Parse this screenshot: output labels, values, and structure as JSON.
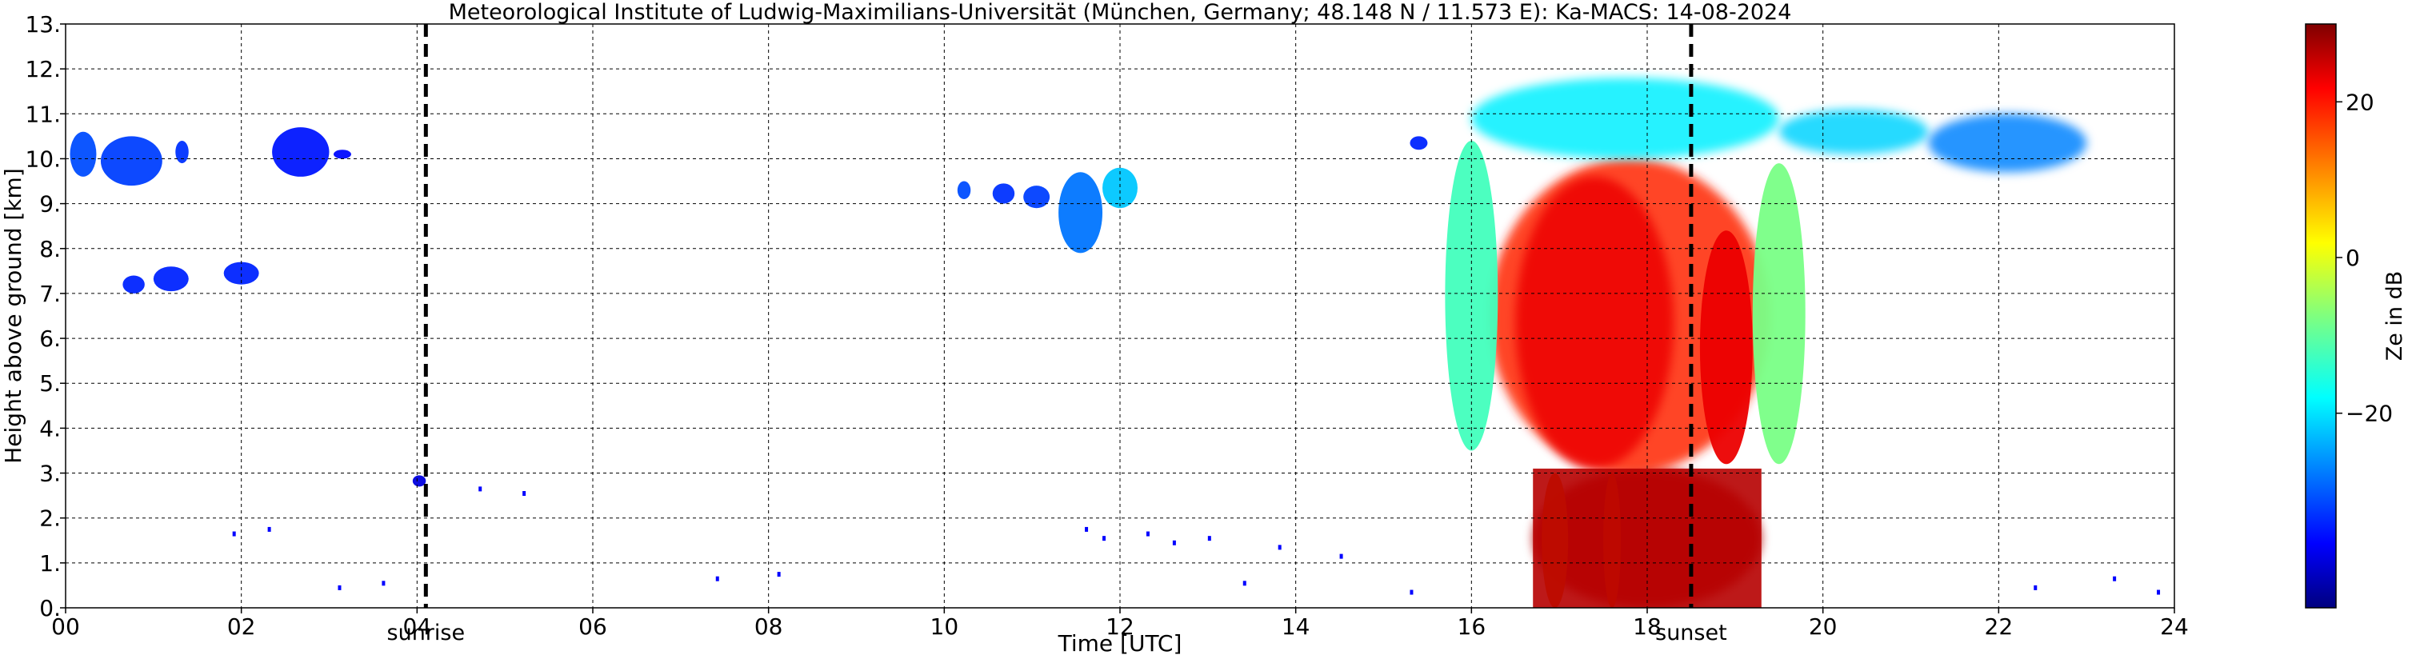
{
  "chart_data": {
    "type": "heatmap",
    "title": "Meteorological Institute of Ludwig-Maximilians-Universität (München, Germany; 48.148 N / 11.573 E):    Ka-MACS: 14-08-2024",
    "xlabel": "Time [UTC]",
    "ylabel": "Height above ground [km]",
    "xlim": [
      0,
      24
    ],
    "ylim": [
      0,
      13
    ],
    "x_ticks": [
      "00",
      "02",
      "04",
      "06",
      "08",
      "10",
      "12",
      "14",
      "16",
      "18",
      "20",
      "22",
      "24"
    ],
    "y_ticks": [
      "0.",
      "1.",
      "2.",
      "3.",
      "4.",
      "5.",
      "6.",
      "7.",
      "8.",
      "9.",
      "10.",
      "11.",
      "12.",
      "13."
    ],
    "grid": true,
    "colormap": "jet",
    "colorbar": {
      "label": "Ze in dB",
      "range": [
        -45,
        30
      ],
      "ticks": [
        {
          "value": 20,
          "label": "20"
        },
        {
          "value": 0,
          "label": "0"
        },
        {
          "value": -20,
          "label": "−20"
        }
      ]
    },
    "vlines": [
      {
        "x": 4.1,
        "label": "sunrise",
        "style": "dashed",
        "color": "#000000"
      },
      {
        "x": 18.5,
        "label": "sunset",
        "style": "dashed",
        "color": "#000000"
      }
    ],
    "echoes": [
      {
        "t0": 0.05,
        "t1": 0.35,
        "h0": 9.6,
        "h1": 10.6,
        "ze": -30
      },
      {
        "t0": 0.4,
        "t1": 1.1,
        "h0": 9.4,
        "h1": 10.5,
        "ze": -31
      },
      {
        "t0": 1.25,
        "t1": 1.4,
        "h0": 9.9,
        "h1": 10.4,
        "ze": -32
      },
      {
        "t0": 0.65,
        "t1": 0.9,
        "h0": 7.0,
        "h1": 7.4,
        "ze": -33
      },
      {
        "t0": 1.0,
        "t1": 1.4,
        "h0": 7.05,
        "h1": 7.6,
        "ze": -33
      },
      {
        "t0": 1.8,
        "t1": 2.2,
        "h0": 7.2,
        "h1": 7.7,
        "ze": -33
      },
      {
        "t0": 2.35,
        "t1": 3.0,
        "h0": 9.6,
        "h1": 10.7,
        "ze": -34
      },
      {
        "t0": 3.05,
        "t1": 3.25,
        "h0": 10.0,
        "h1": 10.2,
        "ze": -35
      },
      {
        "t0": 3.95,
        "t1": 4.1,
        "h0": 2.7,
        "h1": 2.95,
        "ze": -38
      },
      {
        "t0": 10.15,
        "t1": 10.3,
        "h0": 9.1,
        "h1": 9.5,
        "ze": -30
      },
      {
        "t0": 10.55,
        "t1": 10.8,
        "h0": 9.0,
        "h1": 9.45,
        "ze": -32
      },
      {
        "t0": 10.9,
        "t1": 11.2,
        "h0": 8.9,
        "h1": 9.4,
        "ze": -31
      },
      {
        "t0": 11.3,
        "t1": 11.8,
        "h0": 7.9,
        "h1": 9.7,
        "ze": -27
      },
      {
        "t0": 11.8,
        "t1": 12.2,
        "h0": 8.9,
        "h1": 9.8,
        "ze": -21
      },
      {
        "t0": 16.7,
        "t1": 19.3,
        "h0": 0.0,
        "h1": 3.1,
        "ze": 26
      },
      {
        "t0": 16.8,
        "t1": 17.1,
        "h0": 0.0,
        "h1": 3.0,
        "ze": 12
      },
      {
        "t0": 17.5,
        "t1": 17.7,
        "h0": 0.0,
        "h1": 3.0,
        "ze": 14
      },
      {
        "t0": 16.2,
        "t1": 19.4,
        "h0": 3.0,
        "h1": 10.0,
        "ze": 18
      },
      {
        "t0": 16.5,
        "t1": 18.3,
        "h0": 3.1,
        "h1": 9.6,
        "ze": 22
      },
      {
        "t0": 18.6,
        "t1": 19.2,
        "h0": 3.2,
        "h1": 8.4,
        "ze": 22
      },
      {
        "t0": 15.7,
        "t1": 16.3,
        "h0": 3.5,
        "h1": 10.4,
        "ze": -12
      },
      {
        "t0": 19.2,
        "t1": 19.8,
        "h0": 3.2,
        "h1": 9.9,
        "ze": -8
      },
      {
        "t0": 16.0,
        "t1": 19.5,
        "h0": 10.0,
        "h1": 11.8,
        "ze": -18
      },
      {
        "t0": 19.5,
        "t1": 21.2,
        "h0": 10.1,
        "h1": 11.1,
        "ze": -20
      },
      {
        "t0": 21.2,
        "t1": 23.0,
        "h0": 9.7,
        "h1": 11.0,
        "ze": -26
      },
      {
        "t0": 15.3,
        "t1": 15.5,
        "h0": 10.2,
        "h1": 10.5,
        "ze": -33
      }
    ],
    "speckle": [
      {
        "t": 1.9,
        "h": 1.7
      },
      {
        "t": 2.3,
        "h": 1.8
      },
      {
        "t": 3.1,
        "h": 0.5
      },
      {
        "t": 3.6,
        "h": 0.6
      },
      {
        "t": 4.7,
        "h": 2.7
      },
      {
        "t": 5.2,
        "h": 2.6
      },
      {
        "t": 7.4,
        "h": 0.7
      },
      {
        "t": 8.1,
        "h": 0.8
      },
      {
        "t": 11.6,
        "h": 1.8
      },
      {
        "t": 11.8,
        "h": 1.6
      },
      {
        "t": 12.3,
        "h": 1.7
      },
      {
        "t": 12.6,
        "h": 1.5
      },
      {
        "t": 13.0,
        "h": 1.6
      },
      {
        "t": 13.4,
        "h": 0.6
      },
      {
        "t": 13.8,
        "h": 1.4
      },
      {
        "t": 14.5,
        "h": 1.2
      },
      {
        "t": 15.3,
        "h": 0.4
      },
      {
        "t": 22.4,
        "h": 0.5
      },
      {
        "t": 23.3,
        "h": 0.7
      },
      {
        "t": 23.8,
        "h": 0.4
      }
    ]
  }
}
